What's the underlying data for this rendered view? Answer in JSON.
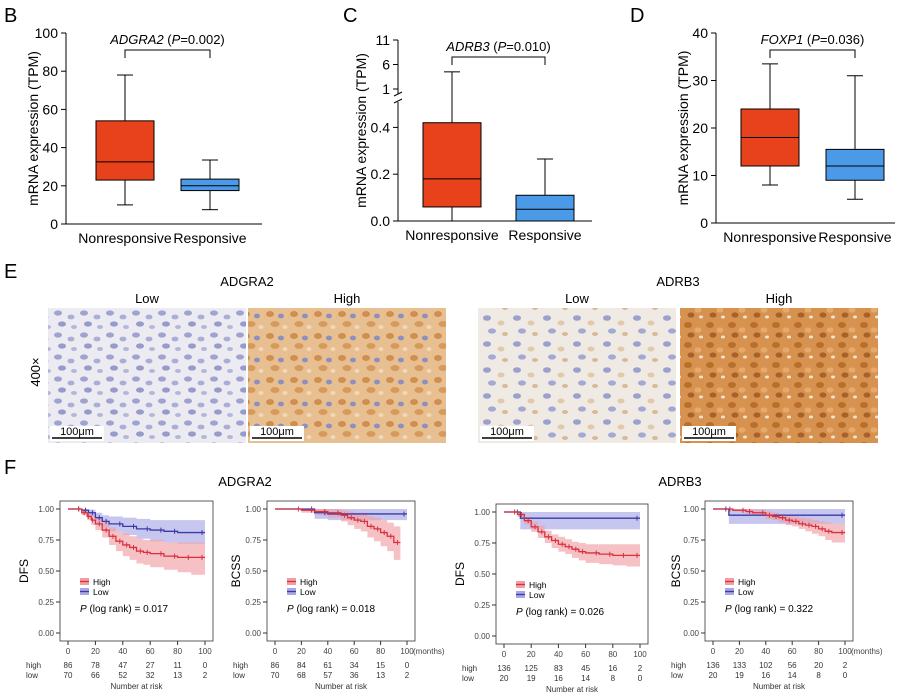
{
  "panel_labels": {
    "b": "B",
    "c": "C",
    "d": "D",
    "e": "E",
    "f": "F"
  },
  "colors": {
    "nonresponsive_fill": "#e8421c",
    "responsive_fill": "#4b9ae8",
    "high_line": "#d9303e",
    "high_band": "#f0a0a4",
    "low_line": "#3a3aa8",
    "low_band": "#a7a7e6"
  },
  "chart_data": [
    {
      "id": "boxB",
      "type": "box",
      "gene": "ADGRA2",
      "p_text": "=0.002",
      "ylabel": "mRNA expression (TPM)",
      "ylim": [
        0,
        100
      ],
      "yticks": [
        0,
        20,
        40,
        60,
        80,
        100
      ],
      "categories": [
        "Nonresponsive",
        "Responsive"
      ],
      "boxes": [
        {
          "min": 10,
          "q1": 23,
          "median": 32.5,
          "q3": 54,
          "max": 78
        },
        {
          "min": 7.5,
          "q1": 17.5,
          "median": 20,
          "q3": 23.5,
          "max": 33.5
        }
      ]
    },
    {
      "id": "boxC",
      "type": "box",
      "gene": "ADRB3",
      "p_text": "=0.010",
      "ylabel": "mRNA expression (TPM)",
      "ylim_lower": [
        0,
        0.5
      ],
      "ylim_upper": [
        1,
        11
      ],
      "yticks_lower": [
        "0.0",
        "0.2",
        "0.4"
      ],
      "yticks_upper": [
        "1",
        "6",
        "11"
      ],
      "categories": [
        "Nonresponsive",
        "Responsive"
      ],
      "boxes": [
        {
          "min": 0.0,
          "q1": 0.06,
          "median": 0.18,
          "q3": 0.42,
          "max": 4.5
        },
        {
          "min": 0.0,
          "q1": 0.0,
          "median": 0.05,
          "q3": 0.11,
          "max": 0.265
        }
      ]
    },
    {
      "id": "boxD",
      "type": "box",
      "gene": "FOXP1",
      "p_text": "=0.036",
      "ylabel": "mRNA expression (TPM)",
      "ylim": [
        0,
        40
      ],
      "yticks": [
        0,
        10,
        20,
        30,
        40
      ],
      "categories": [
        "Nonresponsive",
        "Responsive"
      ],
      "boxes": [
        {
          "min": 8,
          "q1": 12,
          "median": 18,
          "q3": 24,
          "max": 33.5
        },
        {
          "min": 5,
          "q1": 9,
          "median": 12,
          "q3": 15.5,
          "max": 31
        }
      ]
    },
    {
      "id": "km1",
      "type": "line",
      "group": "ADGRA2",
      "ylabel": "DFS",
      "xlim": [
        0,
        100
      ],
      "ylim": [
        0,
        1
      ],
      "series": [
        {
          "name": "High",
          "x": [
            0,
            10,
            14,
            17,
            20,
            25,
            30,
            35,
            40,
            45,
            50,
            55,
            60,
            70,
            80,
            90,
            100
          ],
          "y": [
            1,
            0.97,
            0.94,
            0.91,
            0.88,
            0.83,
            0.78,
            0.74,
            0.71,
            0.69,
            0.66,
            0.65,
            0.64,
            0.62,
            0.61,
            0.61,
            0.61
          ],
          "lower": [
            1,
            0.95,
            0.91,
            0.87,
            0.83,
            0.77,
            0.71,
            0.66,
            0.62,
            0.59,
            0.56,
            0.55,
            0.53,
            0.51,
            0.49,
            0.47,
            0.47
          ],
          "upper": [
            1,
            0.995,
            0.975,
            0.955,
            0.93,
            0.89,
            0.85,
            0.82,
            0.8,
            0.78,
            0.76,
            0.75,
            0.75,
            0.73,
            0.73,
            0.73,
            0.73
          ]
        },
        {
          "name": "Low",
          "x": [
            0,
            10,
            15,
            20,
            25,
            30,
            40,
            50,
            60,
            70,
            80,
            100
          ],
          "y": [
            1,
            0.99,
            0.97,
            0.93,
            0.9,
            0.88,
            0.86,
            0.84,
            0.83,
            0.82,
            0.81,
            0.81
          ],
          "lower": [
            1,
            0.97,
            0.94,
            0.89,
            0.85,
            0.82,
            0.79,
            0.76,
            0.74,
            0.73,
            0.72,
            0.72
          ],
          "upper": [
            1,
            1,
            0.995,
            0.97,
            0.95,
            0.94,
            0.93,
            0.92,
            0.91,
            0.91,
            0.91,
            0.91
          ]
        }
      ],
      "legend": [
        "High",
        "Low"
      ],
      "p_text": "(log rank)  = 0.017",
      "risk_x": [
        0,
        20,
        40,
        60,
        80,
        100
      ],
      "risk": [
        {
          "label": "high",
          "values": [
            "86",
            "78",
            "47",
            "27",
            "11",
            "0"
          ]
        },
        {
          "label": "low",
          "values": [
            "70",
            "66",
            "52",
            "32",
            "13",
            "2"
          ]
        }
      ],
      "risk_title": "Number at risk",
      "x_unit": ""
    },
    {
      "id": "km2",
      "type": "line",
      "group": "ADGRA2",
      "ylabel": "BCSS",
      "xlim": [
        0,
        100
      ],
      "ylim": [
        0,
        1
      ],
      "series": [
        {
          "name": "High",
          "x": [
            0,
            20,
            30,
            40,
            50,
            55,
            60,
            65,
            70,
            75,
            80,
            85,
            90,
            95
          ],
          "y": [
            1,
            0.99,
            0.98,
            0.97,
            0.95,
            0.93,
            0.91,
            0.9,
            0.86,
            0.84,
            0.81,
            0.78,
            0.73,
            0.73
          ],
          "lower": [
            1,
            0.97,
            0.95,
            0.93,
            0.9,
            0.87,
            0.84,
            0.82,
            0.77,
            0.74,
            0.7,
            0.66,
            0.59,
            0.59
          ],
          "upper": [
            1,
            1,
            1,
            1,
            0.99,
            0.98,
            0.97,
            0.97,
            0.94,
            0.93,
            0.91,
            0.89,
            0.86,
            0.86
          ]
        },
        {
          "name": "Low",
          "x": [
            0,
            30,
            40,
            100
          ],
          "y": [
            1,
            0.97,
            0.96,
            0.96
          ],
          "lower": [
            1,
            0.92,
            0.91,
            0.91
          ],
          "upper": [
            1,
            1,
            1,
            1
          ]
        }
      ],
      "legend": [
        "High",
        "Low"
      ],
      "p_text": "(log rank)  = 0.018",
      "risk_x": [
        0,
        20,
        40,
        60,
        80,
        100
      ],
      "risk": [
        {
          "label": "high",
          "values": [
            "86",
            "84",
            "61",
            "34",
            "15",
            "0"
          ]
        },
        {
          "label": "low",
          "values": [
            "70",
            "68",
            "57",
            "36",
            "13",
            "2"
          ]
        }
      ],
      "risk_title": "Number at risk",
      "x_unit": "(months)"
    },
    {
      "id": "km3",
      "type": "line",
      "group": "ADRB3",
      "ylabel": "DFS",
      "xlim": [
        0,
        100
      ],
      "ylim": [
        0,
        1
      ],
      "series": [
        {
          "name": "High",
          "x": [
            0,
            10,
            15,
            20,
            25,
            30,
            35,
            40,
            45,
            50,
            55,
            60,
            70,
            80,
            90,
            100
          ],
          "y": [
            1,
            0.98,
            0.93,
            0.88,
            0.84,
            0.8,
            0.77,
            0.74,
            0.72,
            0.7,
            0.68,
            0.67,
            0.66,
            0.65,
            0.65,
            0.65
          ],
          "lower": [
            1,
            0.96,
            0.9,
            0.84,
            0.79,
            0.75,
            0.71,
            0.68,
            0.66,
            0.63,
            0.61,
            0.59,
            0.58,
            0.57,
            0.56,
            0.56
          ],
          "upper": [
            1,
            0.995,
            0.96,
            0.92,
            0.89,
            0.85,
            0.82,
            0.8,
            0.78,
            0.76,
            0.75,
            0.74,
            0.74,
            0.74,
            0.74,
            0.74
          ]
        },
        {
          "name": "Low",
          "x": [
            0,
            12,
            100
          ],
          "y": [
            1,
            0.95,
            0.95
          ],
          "lower": [
            1,
            0.86,
            0.86
          ],
          "upper": [
            1,
            1,
            1
          ]
        }
      ],
      "legend": [
        "High",
        "Low"
      ],
      "p_text": "(log rank)  = 0.026",
      "risk_x": [
        0,
        20,
        40,
        60,
        80,
        100
      ],
      "risk": [
        {
          "label": "high",
          "values": [
            "136",
            "125",
            "83",
            "45",
            "16",
            "2"
          ]
        },
        {
          "label": "low",
          "values": [
            "20",
            "19",
            "16",
            "14",
            "8",
            "0"
          ]
        }
      ],
      "risk_title": "Number at risk",
      "x_unit": ""
    },
    {
      "id": "km4",
      "type": "line",
      "group": "ADRB3",
      "ylabel": "BCSS",
      "xlim": [
        0,
        100
      ],
      "ylim": [
        0,
        1
      ],
      "series": [
        {
          "name": "High",
          "x": [
            0,
            15,
            25,
            30,
            40,
            45,
            50,
            55,
            60,
            65,
            70,
            75,
            80,
            85,
            90,
            100
          ],
          "y": [
            1,
            0.99,
            0.98,
            0.97,
            0.95,
            0.94,
            0.93,
            0.91,
            0.9,
            0.88,
            0.87,
            0.86,
            0.84,
            0.82,
            0.81,
            0.81
          ],
          "lower": [
            1,
            0.98,
            0.96,
            0.95,
            0.92,
            0.91,
            0.89,
            0.87,
            0.86,
            0.84,
            0.82,
            0.8,
            0.78,
            0.75,
            0.73,
            0.73
          ],
          "upper": [
            1,
            1,
            1,
            0.995,
            0.98,
            0.97,
            0.96,
            0.95,
            0.94,
            0.93,
            0.92,
            0.91,
            0.9,
            0.89,
            0.88,
            0.88
          ]
        },
        {
          "name": "Low",
          "x": [
            0,
            12,
            100
          ],
          "y": [
            1,
            0.95,
            0.95
          ],
          "lower": [
            1,
            0.88,
            0.88
          ],
          "upper": [
            1,
            1,
            1
          ]
        }
      ],
      "legend": [
        "High",
        "Low"
      ],
      "p_text": "(log rank)  = 0.322",
      "risk_x": [
        0,
        20,
        40,
        60,
        80,
        100
      ],
      "risk": [
        {
          "label": "high",
          "values": [
            "136",
            "133",
            "102",
            "56",
            "20",
            "2"
          ]
        },
        {
          "label": "low",
          "values": [
            "20",
            "19",
            "16",
            "14",
            "8",
            "0"
          ]
        }
      ],
      "risk_title": "Number at risk",
      "x_unit": "(months)"
    }
  ],
  "panel_e": {
    "group_titles": [
      "ADGRA2",
      "ADRB3"
    ],
    "magnification": "400×",
    "image_labels": [
      "Low",
      "High",
      "Low",
      "High"
    ],
    "scalebar_text": "100μm"
  },
  "panel_f": {
    "group_titles": [
      "ADGRA2",
      "ADRB3"
    ]
  }
}
